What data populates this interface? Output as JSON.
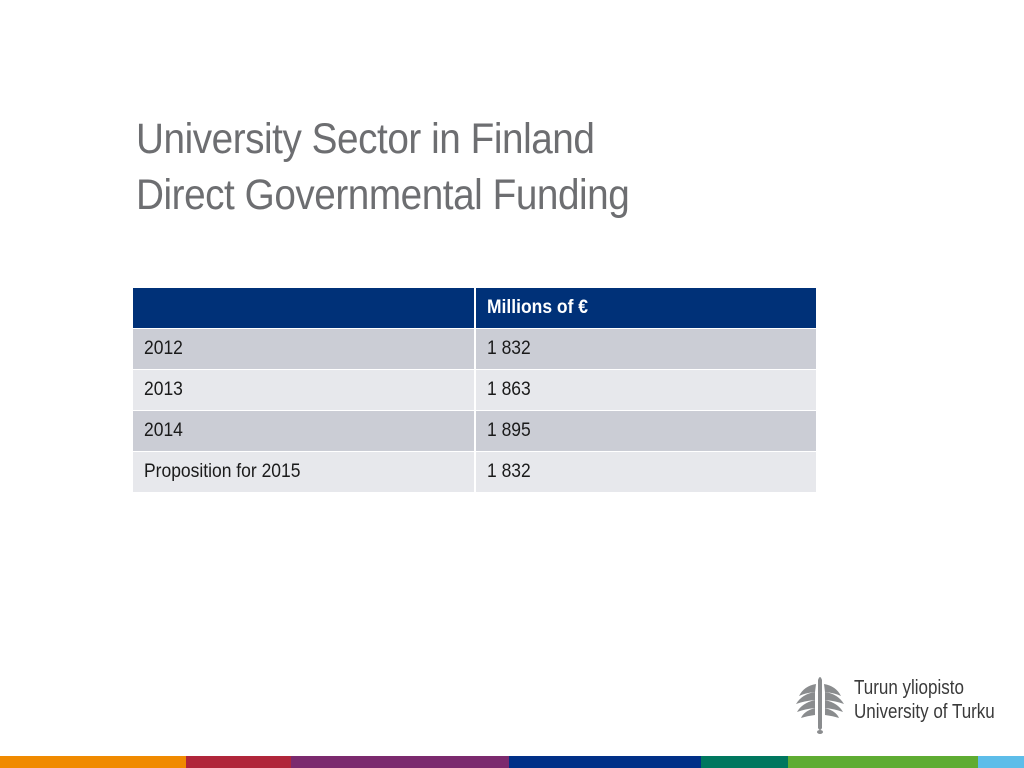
{
  "title": {
    "line1": "University Sector in Finland",
    "line2": "Direct Governmental Funding"
  },
  "table": {
    "header": [
      "",
      "Millions of €"
    ],
    "rows": [
      [
        "2012",
        "1 832"
      ],
      [
        "2013",
        "1 863"
      ],
      [
        "2014",
        "1 895"
      ],
      [
        "Proposition for 2015",
        "1 832"
      ]
    ]
  },
  "logo": {
    "line1": "Turun yliopisto",
    "line2": "University of Turku",
    "icon": "torch-emblem-icon"
  },
  "colors": {
    "title": "#6d6e71",
    "header_bg": "#003178",
    "row_odd": "#cbcdd5",
    "row_even": "#e7e8ec",
    "bar": [
      "#f08a00",
      "#b0263a",
      "#7b2a6e",
      "#002f87",
      "#00775f",
      "#5fac32",
      "#5dbde9"
    ]
  }
}
